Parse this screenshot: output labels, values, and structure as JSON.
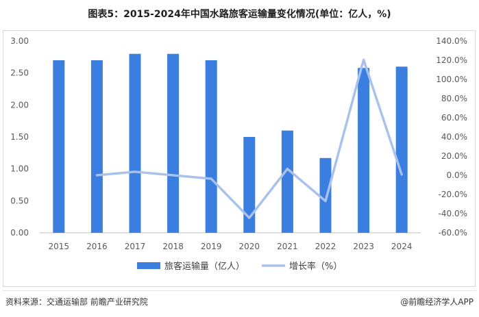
{
  "title": "图表5：2015-2024年中国水路旅客运输量变化情况(单位：亿人，%)",
  "chart_data": {
    "type": "bar",
    "categories": [
      "2015",
      "2016",
      "2017",
      "2018",
      "2019",
      "2020",
      "2021",
      "2022",
      "2023",
      "2024"
    ],
    "series": [
      {
        "name": "旅客运输量（亿人）",
        "type": "bar",
        "axis": "left",
        "values": [
          2.7,
          2.7,
          2.8,
          2.8,
          2.7,
          1.5,
          1.6,
          1.17,
          2.58,
          2.6
        ]
      },
      {
        "name": "增长率（%）",
        "type": "line",
        "axis": "right",
        "values": [
          null,
          0.0,
          3.7,
          0.0,
          -3.6,
          -44.4,
          6.7,
          -26.9,
          120.5,
          0.8
        ]
      }
    ],
    "ylim_left": [
      0,
      3
    ],
    "ylim_right": [
      -60,
      140
    ],
    "yticks_left": [
      "0.00",
      "0.50",
      "1.00",
      "1.50",
      "2.00",
      "2.50",
      "3.00"
    ],
    "yticks_right": [
      "-60.0%",
      "-40.0%",
      "-20.0%",
      "0.0%",
      "20.0%",
      "40.0%",
      "60.0%",
      "80.0%",
      "100.0%",
      "120.0%",
      "140.0%"
    ],
    "legend_position": "bottom",
    "colors": {
      "bar": "#3a7ee0",
      "line": "#a9c2ec"
    }
  },
  "footer": {
    "source": "资料来源：交通运输部 前瞻产业研究院",
    "brand": "@前瞻经济学人APP"
  }
}
